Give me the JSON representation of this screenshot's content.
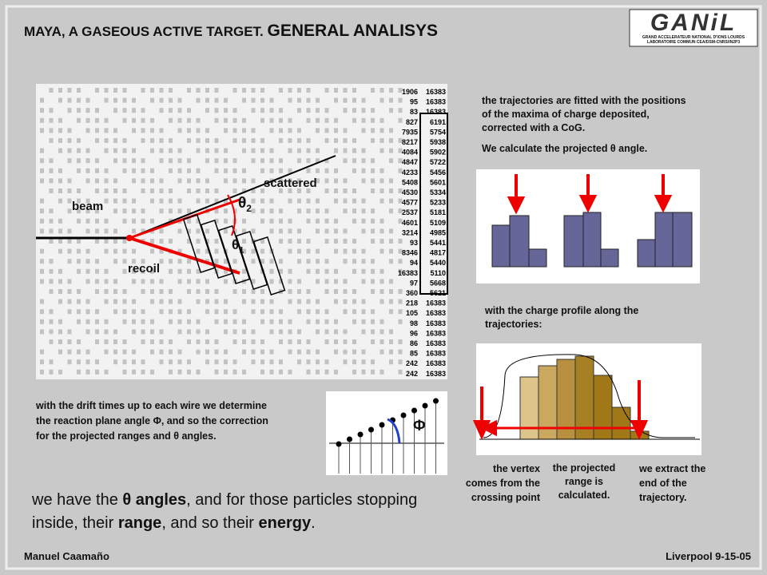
{
  "header": {
    "title": "MAYA, A GASEOUS ACTIVE TARGET.",
    "title_emphasis": "GENERAL ANALISYS"
  },
  "logo": {
    "name": "GANiL",
    "line1": "GRAND ACCELERATEUR NATIONAL D'IONS LOURDS",
    "line2": "LABORATOIRE COMMUN CEA/DSM-CNRS/IN2P3"
  },
  "event_display": {
    "beam": "beam",
    "scattered": "scattered",
    "recoil": "recoil",
    "theta2": {
      "symbol": "θ",
      "sub": "2"
    },
    "theta1": {
      "symbol": "θ",
      "sub": "1"
    },
    "column_a": [
      "1906",
      "95",
      "83",
      "827",
      "7935",
      "8217",
      "4084",
      "4847",
      "4233",
      "5408",
      "4530",
      "4577",
      "2537",
      "4601",
      "3214",
      "93",
      "8346",
      "94",
      "16383",
      "97",
      "360",
      "218",
      "105",
      "98",
      "96",
      "86",
      "85",
      "242",
      "242"
    ],
    "column_b": [
      "16383",
      "16383",
      "16383",
      "6191",
      "5754",
      "5938",
      "5902",
      "5722",
      "5456",
      "5601",
      "5334",
      "5233",
      "5181",
      "5109",
      "4985",
      "5441",
      "4817",
      "5440",
      "5110",
      "5668",
      "5621",
      "16383",
      "16383",
      "16383",
      "16383",
      "16383",
      "16383",
      "16383",
      "16383"
    ]
  },
  "fit_text": "the trajectories are fitted with the positions of the maxima of charge deposited, corrected with a CoG.",
  "theta_text": "We calculate the projected θ angle.",
  "profile_text": "with the charge profile along the trajectories:",
  "drift_text": "with the drift times up to each wire we determine the reaction plane angle Φ, and so the correction for the projected ranges and θ angles.",
  "phi_label": "Φ",
  "profile_labels": {
    "vertex": "the vertex comes from the crossing point",
    "range": "the projected range is calculated.",
    "end": "we extract the end of the trajectory."
  },
  "summary": [
    {
      "text": "we have the ",
      "bold": false
    },
    {
      "text": "θ angles",
      "bold": true
    },
    {
      "text": ", and for those particles stopping inside, their ",
      "bold": false
    },
    {
      "text": "range",
      "bold": true
    },
    {
      "text": ", and so their ",
      "bold": false
    },
    {
      "text": "energy",
      "bold": true
    },
    {
      "text": ".",
      "bold": false
    }
  ],
  "footer": {
    "author": "Manuel Caamaño",
    "event": "Liverpool 9-15-05"
  }
}
